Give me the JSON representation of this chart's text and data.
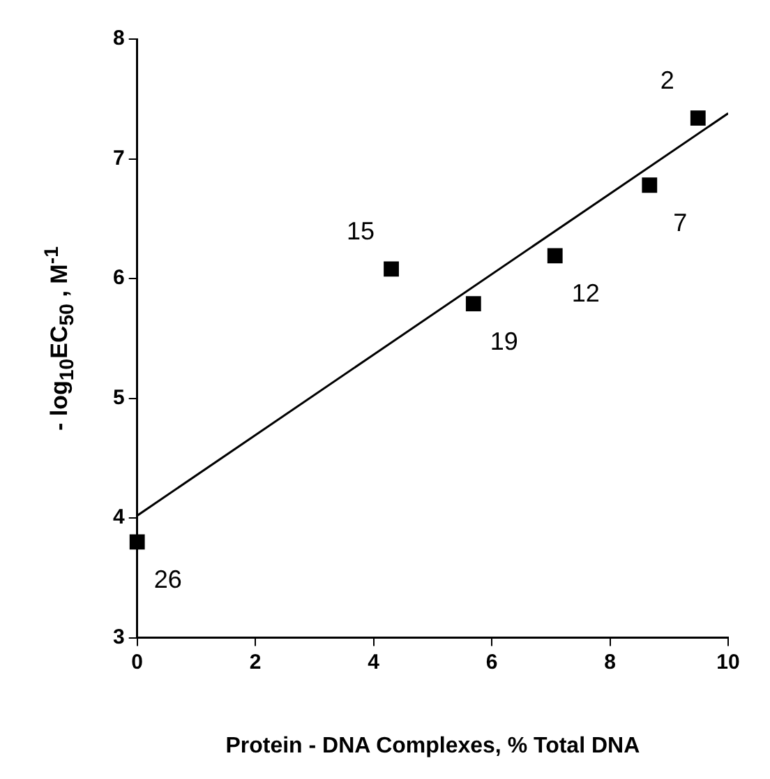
{
  "chart_data": {
    "type": "scatter",
    "xlabel": "Protein - DNA Complexes, % Total DNA",
    "ylabel": "- log$_{10}$EC$_{50}$ , M$^{-1}$",
    "xlim": [
      0,
      10
    ],
    "xticks": [
      0,
      2,
      4,
      6,
      8,
      10
    ],
    "ylim": [
      3,
      8
    ],
    "yticks": [
      3,
      4,
      5,
      6,
      7,
      8
    ],
    "series": [
      {
        "marker": "square",
        "color": "#000000",
        "x": [
          0,
          4.3,
          5.69,
          7.07,
          8.67,
          9.49
        ],
        "values": [
          3.8,
          6.08,
          5.79,
          6.19,
          6.78,
          7.34
        ]
      },
      {
        "type": "line",
        "color": "#000000",
        "x": [
          0,
          10
        ],
        "values": [
          4.02,
          7.38
        ]
      }
    ],
    "annotations": [
      {
        "text": "26",
        "x": 0,
        "y": 3.8
      },
      {
        "text": "15",
        "x": 4.3,
        "y": 6.08
      },
      {
        "text": "19",
        "x": 5.69,
        "y": 5.79
      },
      {
        "text": "12",
        "x": 7.07,
        "y": 6.19
      },
      {
        "text": "7",
        "x": 8.67,
        "y": 6.78
      },
      {
        "text": "2",
        "x": 9.49,
        "y": 7.34
      }
    ]
  }
}
